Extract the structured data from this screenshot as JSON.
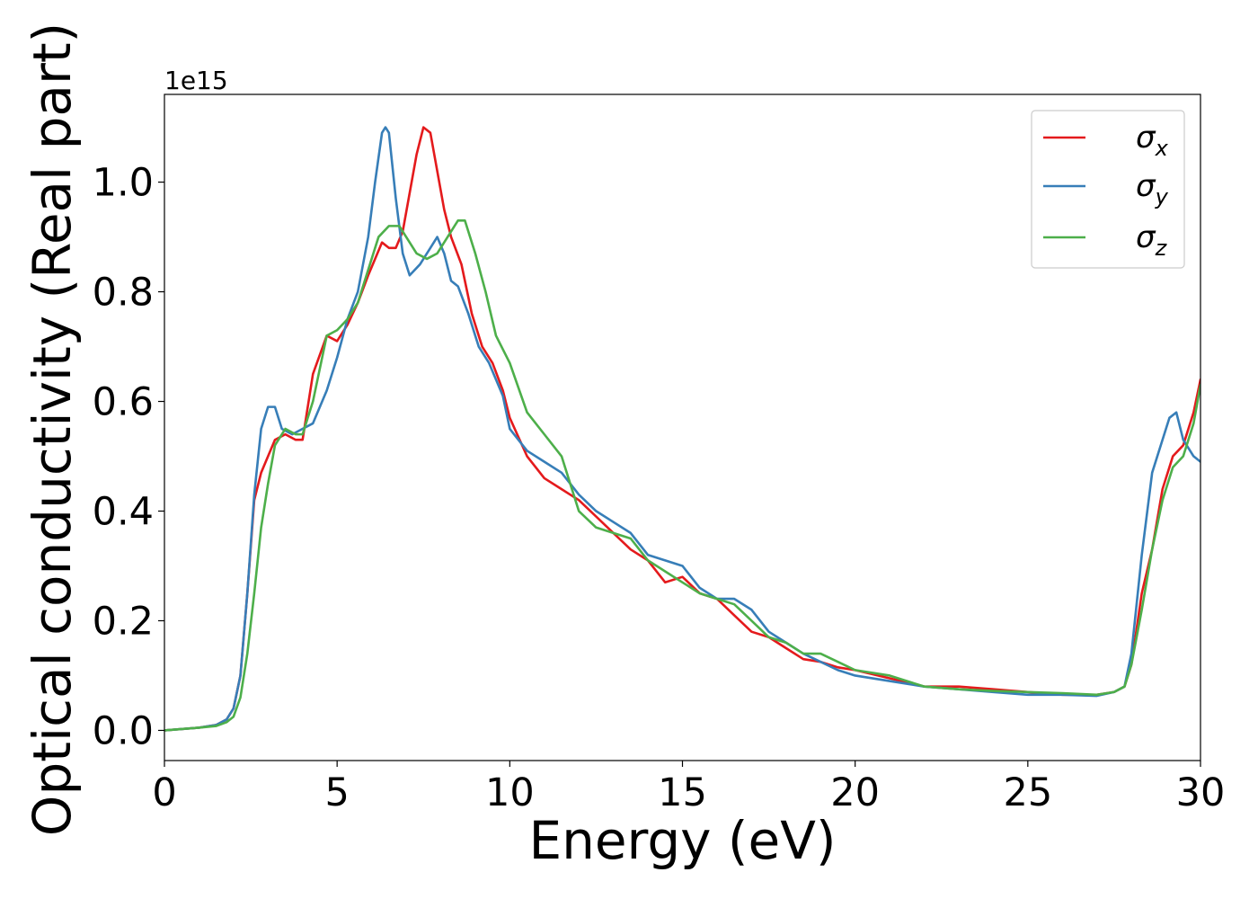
{
  "chart_data": {
    "type": "line",
    "xlabel": "Energy (eV)",
    "ylabel": "Optical conductivity (Real part)",
    "y_offset_label": "1e15",
    "xlim": [
      0,
      30
    ],
    "ylim": [
      -0.055,
      1.16
    ],
    "x_ticks": [
      0,
      5,
      10,
      15,
      20,
      25,
      30
    ],
    "x_tick_labels": [
      "0",
      "5",
      "10",
      "15",
      "20",
      "25",
      "30"
    ],
    "y_ticks": [
      0.0,
      0.2,
      0.4,
      0.6,
      0.8,
      1.0
    ],
    "y_tick_labels": [
      "0.0",
      "0.2",
      "0.4",
      "0.6",
      "0.8",
      "1.0"
    ],
    "grid": false,
    "legend_position": "top-right",
    "series": [
      {
        "name": "σx",
        "symbol": "σ",
        "subscript": "x",
        "color": "#e41a1c",
        "x": [
          0,
          1,
          1.5,
          1.8,
          2.0,
          2.2,
          2.4,
          2.6,
          2.8,
          3.0,
          3.2,
          3.5,
          3.8,
          4.0,
          4.3,
          4.7,
          5.0,
          5.3,
          5.6,
          5.9,
          6.1,
          6.3,
          6.5,
          6.7,
          6.9,
          7.1,
          7.3,
          7.5,
          7.7,
          7.9,
          8.1,
          8.3,
          8.6,
          8.9,
          9.2,
          9.5,
          9.8,
          10.0,
          10.5,
          11.0,
          11.5,
          12.0,
          12.5,
          13.0,
          13.5,
          14.0,
          14.5,
          15.0,
          15.5,
          16.0,
          16.5,
          17.0,
          17.5,
          18.0,
          18.5,
          19.0,
          19.5,
          20.0,
          21.0,
          22.0,
          23.0,
          24.0,
          25.0,
          26.0,
          27.0,
          27.5,
          27.8,
          28.0,
          28.3,
          28.6,
          28.9,
          29.2,
          29.5,
          29.8,
          30.0
        ],
        "y": [
          0.0,
          0.005,
          0.01,
          0.02,
          0.04,
          0.1,
          0.25,
          0.42,
          0.47,
          0.5,
          0.53,
          0.54,
          0.53,
          0.53,
          0.65,
          0.72,
          0.71,
          0.74,
          0.78,
          0.83,
          0.86,
          0.89,
          0.88,
          0.88,
          0.91,
          0.98,
          1.05,
          1.1,
          1.09,
          1.02,
          0.95,
          0.9,
          0.85,
          0.76,
          0.7,
          0.67,
          0.62,
          0.57,
          0.5,
          0.46,
          0.44,
          0.42,
          0.39,
          0.36,
          0.33,
          0.31,
          0.27,
          0.28,
          0.25,
          0.24,
          0.21,
          0.18,
          0.17,
          0.15,
          0.13,
          0.125,
          0.115,
          0.11,
          0.095,
          0.08,
          0.08,
          0.075,
          0.07,
          0.065,
          0.065,
          0.07,
          0.08,
          0.12,
          0.25,
          0.33,
          0.44,
          0.5,
          0.52,
          0.58,
          0.64
        ]
      },
      {
        "name": "σy",
        "symbol": "σ",
        "subscript": "y",
        "color": "#377eb8",
        "x": [
          0,
          1,
          1.5,
          1.8,
          2.0,
          2.2,
          2.4,
          2.6,
          2.8,
          3.0,
          3.2,
          3.4,
          3.7,
          4.0,
          4.3,
          4.7,
          5.0,
          5.3,
          5.6,
          5.9,
          6.1,
          6.3,
          6.4,
          6.5,
          6.7,
          6.9,
          7.1,
          7.4,
          7.7,
          7.9,
          8.1,
          8.3,
          8.5,
          8.8,
          9.1,
          9.4,
          9.8,
          10.0,
          10.5,
          11.0,
          11.5,
          12.0,
          12.5,
          13.0,
          13.5,
          14.0,
          14.5,
          15.0,
          15.5,
          16.0,
          16.5,
          17.0,
          17.5,
          18.0,
          18.5,
          19.0,
          19.5,
          20.0,
          21.0,
          22.0,
          23.0,
          24.0,
          25.0,
          26.0,
          27.0,
          27.5,
          27.8,
          28.0,
          28.3,
          28.6,
          28.9,
          29.1,
          29.3,
          29.5,
          29.8,
          30.0
        ],
        "y": [
          0.0,
          0.005,
          0.01,
          0.02,
          0.04,
          0.1,
          0.25,
          0.43,
          0.55,
          0.59,
          0.59,
          0.55,
          0.54,
          0.55,
          0.56,
          0.62,
          0.68,
          0.75,
          0.8,
          0.9,
          1.0,
          1.09,
          1.1,
          1.09,
          0.97,
          0.87,
          0.83,
          0.85,
          0.88,
          0.9,
          0.87,
          0.82,
          0.81,
          0.76,
          0.7,
          0.67,
          0.61,
          0.55,
          0.51,
          0.49,
          0.47,
          0.43,
          0.4,
          0.38,
          0.36,
          0.32,
          0.31,
          0.3,
          0.26,
          0.24,
          0.24,
          0.22,
          0.18,
          0.16,
          0.14,
          0.125,
          0.11,
          0.1,
          0.09,
          0.08,
          0.075,
          0.07,
          0.065,
          0.065,
          0.063,
          0.07,
          0.08,
          0.14,
          0.32,
          0.47,
          0.53,
          0.57,
          0.58,
          0.53,
          0.5,
          0.49
        ]
      },
      {
        "name": "σz",
        "symbol": "σ",
        "subscript": "z",
        "color": "#4daf4a",
        "x": [
          0,
          1,
          1.5,
          1.8,
          2.0,
          2.2,
          2.4,
          2.6,
          2.8,
          3.0,
          3.2,
          3.5,
          3.8,
          4.0,
          4.3,
          4.7,
          5.0,
          5.3,
          5.6,
          5.9,
          6.2,
          6.5,
          6.8,
          7.0,
          7.3,
          7.6,
          7.9,
          8.2,
          8.5,
          8.7,
          9.0,
          9.3,
          9.6,
          10.0,
          10.5,
          11.0,
          11.5,
          12.0,
          12.5,
          13.0,
          13.5,
          14.0,
          14.5,
          15.0,
          15.5,
          16.0,
          16.5,
          17.0,
          17.5,
          18.0,
          18.5,
          19.0,
          19.5,
          20.0,
          21.0,
          22.0,
          23.0,
          24.0,
          25.0,
          26.0,
          27.0,
          27.5,
          27.8,
          28.0,
          28.3,
          28.6,
          28.9,
          29.2,
          29.5,
          29.8,
          30.0
        ],
        "y": [
          0.0,
          0.005,
          0.008,
          0.015,
          0.025,
          0.06,
          0.14,
          0.25,
          0.37,
          0.45,
          0.52,
          0.55,
          0.54,
          0.54,
          0.6,
          0.72,
          0.73,
          0.75,
          0.78,
          0.84,
          0.9,
          0.92,
          0.92,
          0.9,
          0.87,
          0.86,
          0.87,
          0.9,
          0.93,
          0.93,
          0.87,
          0.8,
          0.72,
          0.67,
          0.58,
          0.54,
          0.5,
          0.4,
          0.37,
          0.36,
          0.35,
          0.31,
          0.29,
          0.27,
          0.25,
          0.24,
          0.23,
          0.2,
          0.17,
          0.16,
          0.14,
          0.14,
          0.125,
          0.11,
          0.1,
          0.08,
          0.075,
          0.072,
          0.07,
          0.068,
          0.065,
          0.07,
          0.08,
          0.12,
          0.22,
          0.33,
          0.42,
          0.48,
          0.5,
          0.56,
          0.63
        ]
      }
    ]
  }
}
